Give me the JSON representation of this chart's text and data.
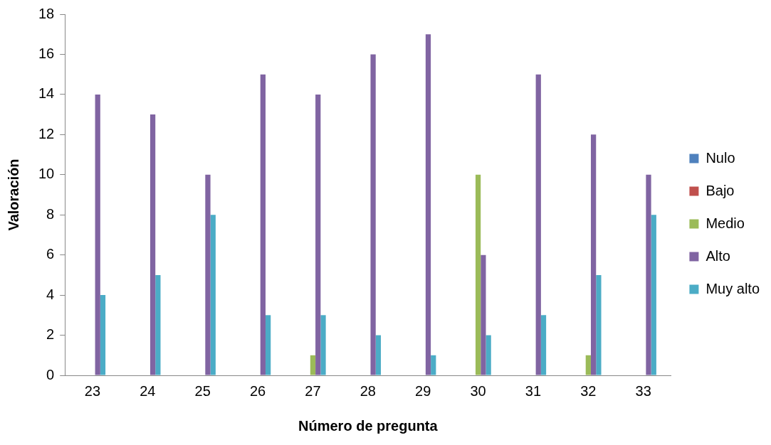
{
  "chart_data": {
    "type": "bar",
    "xlabel": "Número de pregunta",
    "ylabel": "Valoración",
    "categories": [
      "23",
      "24",
      "25",
      "26",
      "27",
      "28",
      "29",
      "30",
      "31",
      "32",
      "33"
    ],
    "series": [
      {
        "name": "Nulo",
        "color": "#4f81bd",
        "values": [
          0,
          0,
          0,
          0,
          0,
          0,
          0,
          0,
          0,
          0,
          0
        ]
      },
      {
        "name": "Bajo",
        "color": "#c0504d",
        "values": [
          0,
          0,
          0,
          0,
          0,
          0,
          0,
          0,
          0,
          0,
          0
        ]
      },
      {
        "name": "Medio",
        "color": "#9bbb59",
        "values": [
          0,
          0,
          0,
          0,
          1,
          0,
          0,
          10,
          0,
          1,
          0
        ]
      },
      {
        "name": "Alto",
        "color": "#8064a2",
        "values": [
          14,
          13,
          10,
          15,
          14,
          16,
          17,
          6,
          15,
          12,
          10
        ]
      },
      {
        "name": "Muy alto",
        "color": "#4bacc6",
        "values": [
          4,
          5,
          8,
          3,
          3,
          2,
          1,
          2,
          3,
          5,
          8
        ]
      }
    ],
    "ylim": [
      0,
      18
    ],
    "yticks": [
      0,
      2,
      4,
      6,
      8,
      10,
      12,
      14,
      16,
      18
    ],
    "grid": false,
    "legend": "right"
  }
}
